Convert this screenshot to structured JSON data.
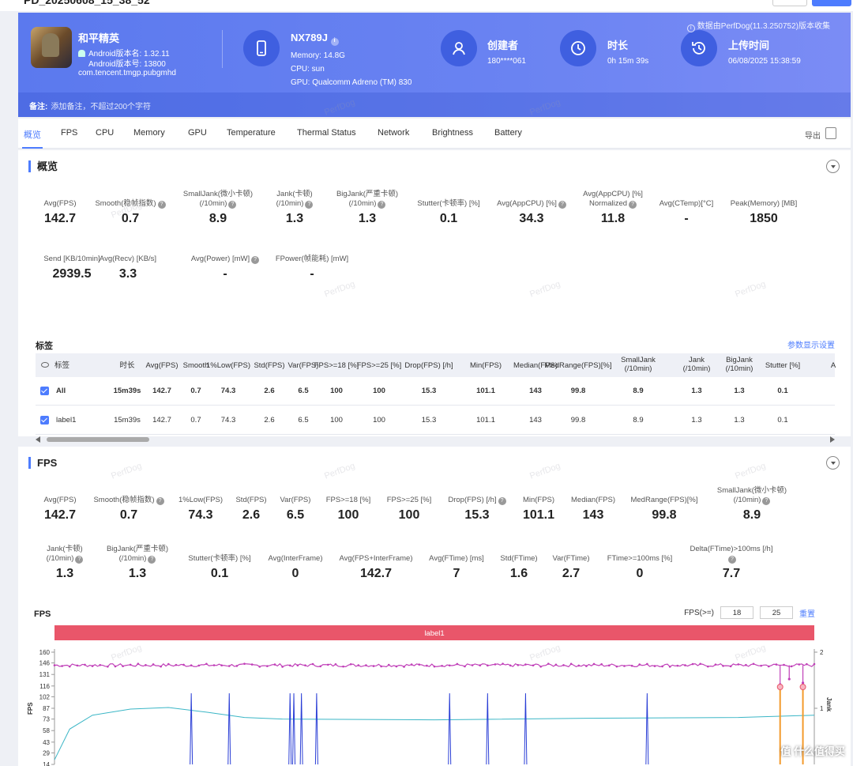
{
  "window": {
    "title": "PD_20250608_15_38_52"
  },
  "header": {
    "game_name": "和平精英",
    "android_version_name": "Android版本名: 1.32.11",
    "android_version_code": "Android版本号: 13800",
    "package": "com.tencent.tmgp.pubgmhd",
    "device": {
      "model": "NX789J",
      "memory": "Memory: 14.8G",
      "cpu": "CPU: sun",
      "gpu": "GPU: Qualcomm Adreno (TM) 830"
    },
    "creator": {
      "title": "创建者",
      "value": "180****061"
    },
    "duration": {
      "title": "时长",
      "value": "0h 15m 39s"
    },
    "upload": {
      "title": "上传时间",
      "value": "06/08/2025 15:38:59"
    },
    "collect_info": "数据由PerfDog(11.3.250752)版本收集",
    "note_label": "备注:",
    "note_placeholder": "添加备注，不超过200个字符"
  },
  "tabs": [
    "概览",
    "FPS",
    "CPU",
    "Memory",
    "GPU",
    "Temperature",
    "Thermal Status",
    "Network",
    "Brightness",
    "Battery"
  ],
  "export_label": "导出",
  "overview": {
    "title": "概览",
    "metrics_row1": [
      {
        "label": "Avg(FPS)",
        "value": "142.7",
        "help": false
      },
      {
        "label": "Smooth(稳帧指数)",
        "value": "0.7",
        "help": true
      },
      {
        "label": "SmallJank(微小卡顿)\n(/10min)",
        "value": "8.9",
        "help": true
      },
      {
        "label": "Jank(卡顿)\n(/10min)",
        "value": "1.3",
        "help": true
      },
      {
        "label": "BigJank(严重卡顿)\n(/10min)",
        "value": "1.3",
        "help": true
      },
      {
        "label": "Stutter(卡顿率) [%]",
        "value": "0.1",
        "help": false
      },
      {
        "label": "Avg(AppCPU) [%]",
        "value": "34.3",
        "help": true
      },
      {
        "label": "Avg(AppCPU) [%]\nNormalized",
        "value": "11.8",
        "help": true
      },
      {
        "label": "Avg(CTemp)[°C]",
        "value": "-",
        "help": false
      },
      {
        "label": "Peak(Memory) [MB]",
        "value": "1850",
        "help": false
      }
    ],
    "metrics_row2": [
      {
        "label": "Send [KB/10min]",
        "value": "2939.5",
        "help": false
      },
      {
        "label": "Avg(Recv) [KB/s]",
        "value": "3.3",
        "help": false
      },
      {
        "label": "Avg(Power) [mW]",
        "value": "-",
        "help": true
      },
      {
        "label": "FPower(帧能耗) [mW]",
        "value": "-",
        "help": false
      }
    ],
    "tags_title": "标签",
    "param_settings": "参数显示设置",
    "table": {
      "headers": [
        "标签",
        "时长",
        "Avg(FPS)",
        "Smooth",
        "1%Low(FPS)",
        "Std(FPS)",
        "Var(FPS)",
        "FPS>=18 [%]",
        "FPS>=25 [%]",
        "Drop(FPS) [/h]",
        "Min(FPS)",
        "Median(FPS)",
        "MedRange(FPS)[%]",
        "SmallJank\n(/10min)",
        "Jank\n(/10min)",
        "BigJank\n(/10min)",
        "Stutter [%]",
        "A"
      ],
      "rows": [
        [
          "All",
          "15m39s",
          "142.7",
          "0.7",
          "74.3",
          "2.6",
          "6.5",
          "100",
          "100",
          "15.3",
          "101.1",
          "143",
          "99.8",
          "8.9",
          "1.3",
          "1.3",
          "0.1"
        ],
        [
          "label1",
          "15m39s",
          "142.7",
          "0.7",
          "74.3",
          "2.6",
          "6.5",
          "100",
          "100",
          "15.3",
          "101.1",
          "143",
          "99.8",
          "8.9",
          "1.3",
          "1.3",
          "0.1"
        ]
      ]
    }
  },
  "fps_section": {
    "title": "FPS",
    "metrics_row1": [
      {
        "label": "Avg(FPS)",
        "value": "142.7",
        "help": false
      },
      {
        "label": "Smooth(稳帧指数)",
        "value": "0.7",
        "help": true
      },
      {
        "label": "1%Low(FPS)",
        "value": "74.3",
        "help": false
      },
      {
        "label": "Std(FPS)",
        "value": "2.6",
        "help": false
      },
      {
        "label": "Var(FPS)",
        "value": "6.5",
        "help": false
      },
      {
        "label": "FPS>=18 [%]",
        "value": "100",
        "help": false
      },
      {
        "label": "FPS>=25 [%]",
        "value": "100",
        "help": false
      },
      {
        "label": "Drop(FPS) [/h]",
        "value": "15.3",
        "help": true
      },
      {
        "label": "Min(FPS)",
        "value": "101.1",
        "help": false
      },
      {
        "label": "Median(FPS)",
        "value": "143",
        "help": false
      },
      {
        "label": "MedRange(FPS)[%]",
        "value": "99.8",
        "help": false
      },
      {
        "label": "SmallJank(微小卡顿)\n(/10min)",
        "value": "8.9",
        "help": true
      }
    ],
    "metrics_row2": [
      {
        "label": "Jank(卡顿)\n(/10min)",
        "value": "1.3",
        "help": true
      },
      {
        "label": "BigJank(严重卡顿)\n(/10min)",
        "value": "1.3",
        "help": true
      },
      {
        "label": "Stutter(卡顿率) [%]",
        "value": "0.1",
        "help": false
      },
      {
        "label": "Avg(InterFrame)",
        "value": "0",
        "help": false
      },
      {
        "label": "Avg(FPS+InterFrame)",
        "value": "142.7",
        "help": false
      },
      {
        "label": "Avg(FTime) [ms]",
        "value": "7",
        "help": false
      },
      {
        "label": "Std(FTime)",
        "value": "1.6",
        "help": false
      },
      {
        "label": "Var(FTime)",
        "value": "2.7",
        "help": false
      },
      {
        "label": "FTime>=100ms [%]",
        "value": "0",
        "help": false
      },
      {
        "label": "Delta(FTime)>100ms [/h]",
        "value": "7.7",
        "help": true
      }
    ],
    "chart_title": "FPS",
    "fps_threshold_label": "FPS(>=)",
    "threshold_1": "18",
    "threshold_2": "25",
    "reset_label": "重置",
    "label_bar": "label1"
  },
  "chart_data": {
    "type": "line",
    "title": "FPS",
    "ylabel": "FPS",
    "y2label": "Jank",
    "y_ticks": [
      14,
      29,
      43,
      58,
      73,
      87,
      102,
      116,
      131,
      146,
      160
    ],
    "y2_ticks": [
      1,
      2
    ],
    "ylim": [
      14,
      160
    ],
    "y2lim": [
      0,
      2
    ],
    "series": [
      {
        "name": "FPS",
        "color": "#c03fb8",
        "approx_value": 143,
        "dips": [
          {
            "x": 0.955,
            "y": 118
          },
          {
            "x": 0.967,
            "y": 125
          },
          {
            "x": 0.985,
            "y": 120
          }
        ]
      },
      {
        "name": "Jank",
        "color": "#2b3fd6",
        "spikes_x": [
          0.18,
          0.23,
          0.31,
          0.315,
          0.325,
          0.345,
          0.52,
          0.57,
          0.62,
          0.78
        ]
      },
      {
        "color": "#3bb6c6",
        "points": [
          [
            0,
            20
          ],
          [
            0.02,
            60
          ],
          [
            0.05,
            78
          ],
          [
            0.1,
            86
          ],
          [
            0.15,
            88
          ],
          [
            0.2,
            82
          ],
          [
            0.25,
            75
          ],
          [
            0.3,
            73
          ],
          [
            0.5,
            72
          ],
          [
            0.7,
            74
          ],
          [
            0.9,
            75
          ],
          [
            1.0,
            78
          ]
        ]
      }
    ],
    "legend": []
  },
  "colors": {
    "accent": "#4d7cfe",
    "label_bar": "#e9566a",
    "header": "#5b79ee"
  }
}
